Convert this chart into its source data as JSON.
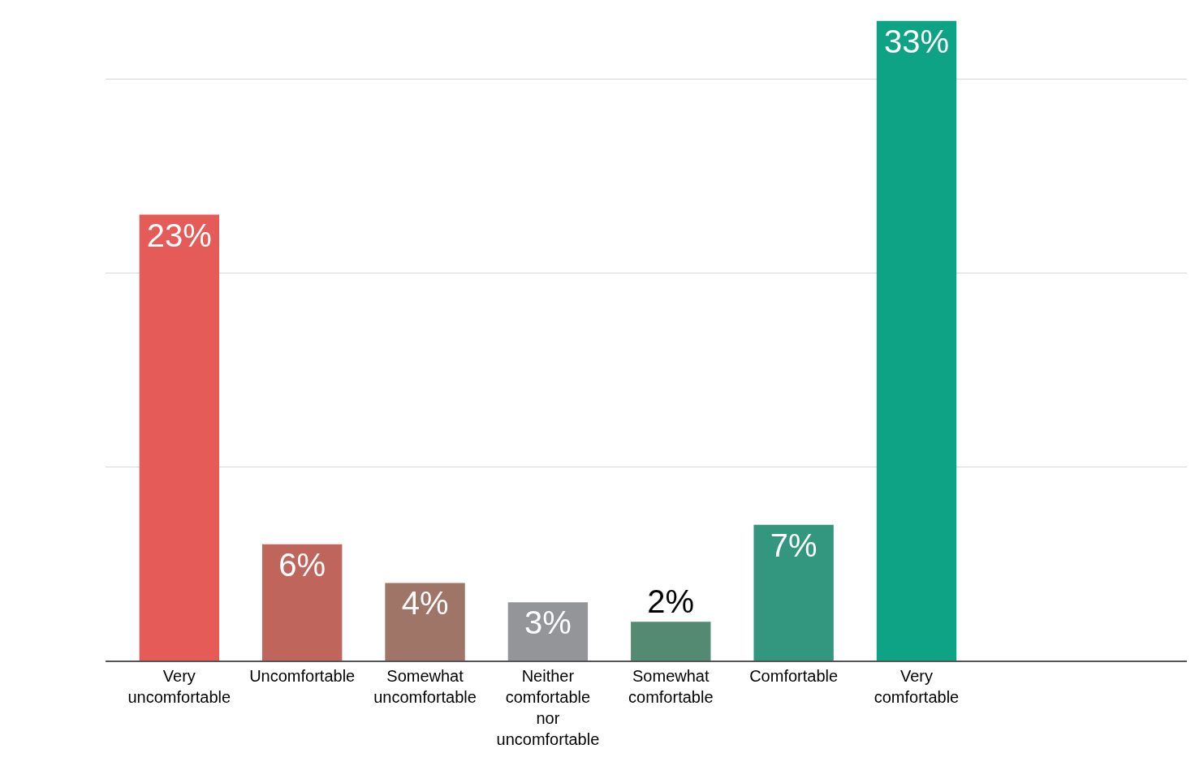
{
  "chart_data": {
    "type": "bar",
    "categories": [
      "Very uncomfortable",
      "Uncomfortable",
      "Somewhat uncomfortable",
      "Neither comfortable nor uncomfortable",
      "Somewhat comfortable",
      "Comfortable",
      "Very comfortable"
    ],
    "values": [
      23,
      6,
      4,
      3,
      2,
      7,
      33
    ],
    "colors": [
      "#e45b57",
      "#c0655c",
      "#9e7567",
      "#949599",
      "#558a72",
      "#33977f",
      "#0fa386"
    ],
    "value_labels": [
      "23%",
      "6%",
      "4%",
      "3%",
      "2%",
      "7%",
      "33%"
    ],
    "grid": "y",
    "tick_labels": "x"
  }
}
